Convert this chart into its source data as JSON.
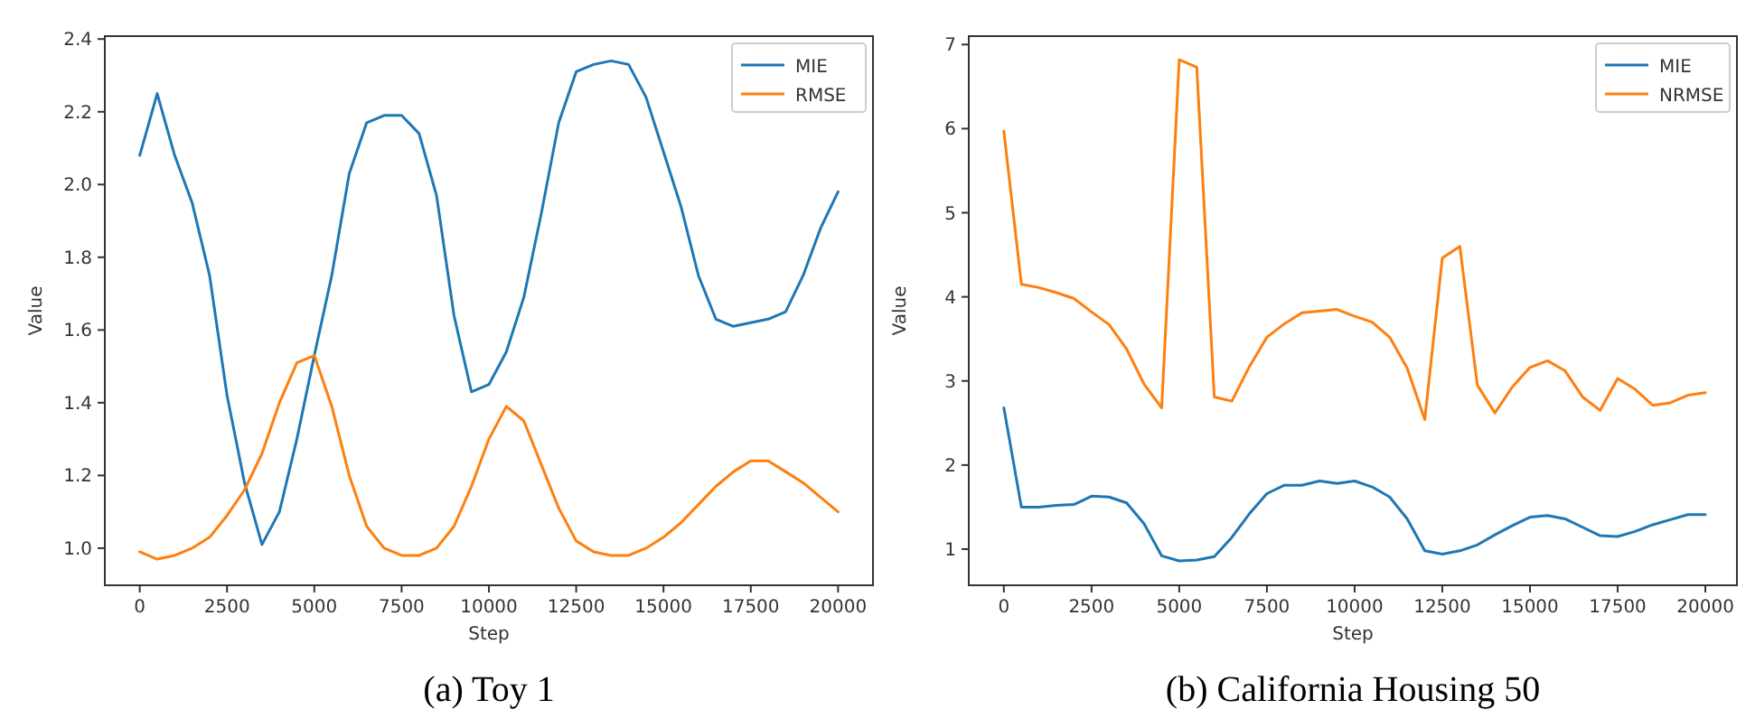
{
  "chart_data": [
    {
      "type": "line",
      "title": "(a) Toy 1",
      "xlabel": "Step",
      "ylabel": "Value",
      "legend": "top right",
      "xlim": [
        -1000,
        21000
      ],
      "ylim": [
        0.898,
        2.408
      ],
      "xticks": [
        0,
        2500,
        5000,
        7500,
        10000,
        12500,
        15000,
        17500,
        20000
      ],
      "yticks": [
        {
          "value": 1,
          "label": "1.0"
        },
        {
          "value": 1.2,
          "label": "1.2"
        },
        {
          "value": 1.4,
          "label": "1.4"
        },
        {
          "value": 1.6,
          "label": "1.6"
        },
        {
          "value": 1.8,
          "label": "1.8"
        },
        {
          "value": 2,
          "label": "2.0"
        },
        {
          "value": 2.2,
          "label": "2.2"
        },
        {
          "value": 2.4,
          "label": "2.4"
        }
      ],
      "x": [
        0,
        500,
        1000,
        1500,
        2000,
        2500,
        3000,
        3500,
        4000,
        4500,
        5000,
        5500,
        6000,
        6500,
        7000,
        7500,
        8000,
        8500,
        9000,
        9500,
        10000,
        10500,
        11000,
        11500,
        12000,
        12500,
        13000,
        13500,
        14000,
        14500,
        15000,
        15500,
        16000,
        16500,
        17000,
        17500,
        18000,
        18500,
        19000,
        19500,
        20000
      ],
      "series": [
        {
          "name": "MIE",
          "color": "#1f77b4",
          "values": [
            2.08,
            2.25,
            2.08,
            1.95,
            1.75,
            1.42,
            1.18,
            1.01,
            1.1,
            1.3,
            1.53,
            1.75,
            2.03,
            2.17,
            2.19,
            2.19,
            2.14,
            1.97,
            1.64,
            1.43,
            1.45,
            1.54,
            1.69,
            1.92,
            2.17,
            2.31,
            2.33,
            2.34,
            2.33,
            2.24,
            2.09,
            1.94,
            1.75,
            1.63,
            1.61,
            1.62,
            1.63,
            1.65,
            1.75,
            1.88,
            1.98
          ]
        },
        {
          "name": "RMSE",
          "color": "#ff7f0e",
          "values": [
            0.99,
            0.97,
            0.98,
            1.0,
            1.03,
            1.09,
            1.16,
            1.26,
            1.4,
            1.51,
            1.53,
            1.39,
            1.2,
            1.06,
            1.0,
            0.98,
            0.98,
            1.0,
            1.06,
            1.17,
            1.3,
            1.39,
            1.35,
            1.23,
            1.11,
            1.02,
            0.99,
            0.98,
            0.98,
            1.0,
            1.03,
            1.07,
            1.12,
            1.17,
            1.21,
            1.24,
            1.24,
            1.21,
            1.18,
            1.14,
            1.1
          ]
        }
      ]
    },
    {
      "type": "line",
      "title": "(b) California Housing 50",
      "xlabel": "Step",
      "ylabel": "Value",
      "legend": "top right",
      "xlim": [
        -1000,
        20900
      ],
      "ylim": [
        0.57,
        7.1
      ],
      "xticks": [
        0,
        2500,
        5000,
        7500,
        10000,
        12500,
        15000,
        17500,
        20000
      ],
      "yticks": [
        1,
        2,
        3,
        4,
        5,
        6,
        7
      ],
      "x": [
        0,
        500,
        1000,
        1500,
        2000,
        2500,
        3000,
        3500,
        4000,
        4500,
        5000,
        5500,
        6000,
        6500,
        7000,
        7500,
        8000,
        8500,
        9000,
        9500,
        10000,
        10500,
        11000,
        11500,
        12000,
        12500,
        13000,
        13500,
        14000,
        14500,
        15000,
        15500,
        16000,
        16500,
        17000,
        17500,
        18000,
        18500,
        19000,
        19500,
        20000
      ],
      "series": [
        {
          "name": "MIE",
          "color": "#1f77b4",
          "values": [
            2.68,
            1.5,
            1.5,
            1.52,
            1.53,
            1.63,
            1.62,
            1.55,
            1.3,
            0.92,
            0.86,
            0.87,
            0.91,
            1.14,
            1.42,
            1.66,
            1.76,
            1.76,
            1.81,
            1.78,
            1.81,
            1.74,
            1.62,
            1.36,
            0.98,
            0.94,
            0.98,
            1.05,
            1.17,
            1.28,
            1.38,
            1.4,
            1.36,
            1.26,
            1.16,
            1.15,
            1.21,
            1.29,
            1.35,
            1.41,
            1.41
          ]
        },
        {
          "name": "NRMSE",
          "color": "#ff7f0e",
          "values": [
            5.97,
            4.15,
            4.11,
            4.05,
            3.98,
            3.82,
            3.67,
            3.38,
            2.96,
            2.68,
            6.82,
            6.73,
            2.81,
            2.76,
            3.17,
            3.52,
            3.68,
            3.81,
            3.83,
            3.85,
            3.77,
            3.7,
            3.52,
            3.15,
            2.54,
            4.46,
            4.6,
            2.95,
            2.62,
            2.93,
            3.16,
            3.24,
            3.12,
            2.81,
            2.65,
            3.03,
            2.9,
            2.71,
            2.74,
            2.83,
            2.86
          ]
        }
      ]
    }
  ]
}
